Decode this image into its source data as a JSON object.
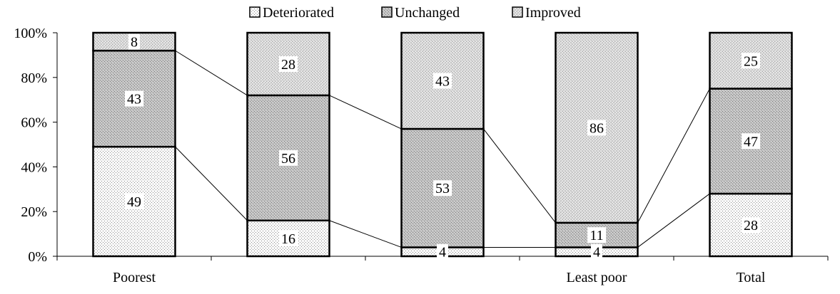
{
  "chart_data": {
    "type": "bar",
    "stacked": true,
    "normalized_percent": true,
    "series_lines": true,
    "categories": [
      "Poorest",
      "",
      "",
      "Least poor",
      "Total"
    ],
    "series": [
      {
        "name": "Deteriorated",
        "values": [
          49,
          16,
          4,
          4,
          28
        ],
        "labels": [
          "49",
          "16",
          "4",
          "4",
          "28"
        ],
        "pattern": "pat-dots",
        "swatch": "#f2f2f2"
      },
      {
        "name": "Unchanged",
        "values": [
          43,
          56,
          53,
          11,
          47
        ],
        "labels": [
          "43",
          "56",
          "53",
          "11",
          "47"
        ],
        "pattern": "pat-gray",
        "swatch": "#b4b4b4"
      },
      {
        "name": "Improved",
        "values": [
          8,
          28,
          43,
          86,
          25
        ],
        "labels": [
          "8",
          "28",
          "43",
          "86",
          "25"
        ],
        "pattern": "pat-light",
        "swatch": "#dadada"
      }
    ],
    "y_ticks": [
      "0%",
      "20%",
      "40%",
      "60%",
      "80%",
      "100%"
    ],
    "ylim": [
      0,
      100
    ],
    "legend_position": "top",
    "grid": false
  }
}
